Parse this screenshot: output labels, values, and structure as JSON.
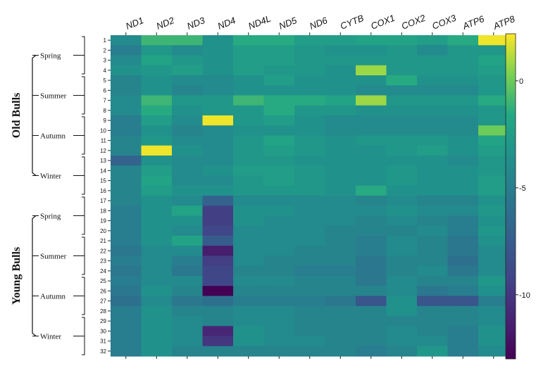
{
  "chart_data": {
    "type": "heatmap",
    "title": "",
    "columns": [
      "ND1",
      "ND2",
      "ND3",
      "ND4",
      "ND4L",
      "ND5",
      "ND6",
      "CYTB",
      "COX1",
      "COX2",
      "COX3",
      "ATP6",
      "ATP8"
    ],
    "rows": [
      "1",
      "2",
      "3",
      "4",
      "5",
      "6",
      "7",
      "8",
      "9",
      "10",
      "11",
      "12",
      "13",
      "14",
      "15",
      "16",
      "17",
      "18",
      "19",
      "20",
      "21",
      "22",
      "23",
      "24",
      "25",
      "26",
      "27",
      "28",
      "29",
      "30",
      "31",
      "32"
    ],
    "row_groups": [
      {
        "label": "Old Bulls",
        "seasons": [
          {
            "label": "Spring",
            "rows": [
              "1",
              "4"
            ]
          },
          {
            "label": "Summer",
            "rows": [
              "5",
              "8"
            ]
          },
          {
            "label": "Autumn",
            "rows": [
              "9",
              "12"
            ]
          },
          {
            "label": "Winter",
            "rows": [
              "13",
              "16"
            ]
          }
        ]
      },
      {
        "label": "Young Bulls",
        "seasons": [
          {
            "label": "Spring",
            "rows": [
              "17",
              "20"
            ]
          },
          {
            "label": "Summer",
            "rows": [
              "21",
              "24"
            ]
          },
          {
            "label": "Autumn",
            "rows": [
              "25",
              "28"
            ]
          },
          {
            "label": "Winter",
            "rows": [
              "29",
              "32"
            ]
          }
        ]
      }
    ],
    "colorscale": "viridis",
    "vmin": -13,
    "vmax": 2.2,
    "colorbar_ticks": [
      0,
      -5,
      -10
    ],
    "values": [
      [
        -4.0,
        -1.0,
        -1.0,
        -3.5,
        -1.5,
        -1.5,
        -2.5,
        -2.5,
        -2.0,
        -2.0,
        -2.5,
        -1.5,
        2.0
      ],
      [
        -5.0,
        -3.0,
        -4.0,
        -3.5,
        -2.5,
        -2.5,
        -3.0,
        -3.5,
        -3.5,
        -3.0,
        -4.0,
        -3.0,
        -3.0
      ],
      [
        -4.0,
        -2.0,
        -3.0,
        -3.5,
        -2.5,
        -2.5,
        -3.0,
        -3.0,
        -3.0,
        -3.0,
        -3.0,
        -3.0,
        -2.0
      ],
      [
        -3.5,
        -3.0,
        -2.5,
        -3.5,
        -2.5,
        -3.0,
        -3.0,
        -3.5,
        0.8,
        -3.0,
        -3.0,
        -3.0,
        -2.5
      ],
      [
        -4.5,
        -3.5,
        -4.0,
        -4.0,
        -3.5,
        -2.5,
        -3.5,
        -3.5,
        -3.5,
        -1.5,
        -3.5,
        -3.5,
        -3.0
      ],
      [
        -4.5,
        -3.5,
        -4.5,
        -4.0,
        -3.5,
        -3.5,
        -3.5,
        -3.5,
        -4.0,
        -4.0,
        -4.0,
        -4.0,
        -3.0
      ],
      [
        -4.0,
        -1.0,
        -3.0,
        -3.0,
        -1.0,
        -1.5,
        -1.5,
        -2.0,
        0.8,
        -3.0,
        -3.0,
        -3.0,
        -1.5
      ],
      [
        -4.0,
        -1.5,
        -3.5,
        -3.0,
        -3.0,
        -1.5,
        -3.0,
        -3.0,
        -3.5,
        -3.5,
        -3.5,
        -3.5,
        -3.0
      ],
      [
        -5.0,
        -2.5,
        -4.0,
        2.0,
        -3.0,
        -2.5,
        -3.5,
        -4.0,
        -4.0,
        -4.0,
        -4.0,
        -4.0,
        -3.0
      ],
      [
        -5.0,
        -3.5,
        -4.5,
        -4.0,
        -3.5,
        -3.5,
        -3.5,
        -4.0,
        -4.0,
        -4.0,
        -4.0,
        -4.0,
        0.0
      ],
      [
        -4.5,
        -3.0,
        -4.0,
        -4.0,
        -3.0,
        -2.0,
        -3.0,
        -3.5,
        -3.0,
        -3.0,
        -3.0,
        -3.5,
        -2.0
      ],
      [
        -4.5,
        2.0,
        -3.5,
        -4.0,
        -3.0,
        -2.5,
        -3.0,
        -3.5,
        -3.5,
        -3.0,
        -2.5,
        -3.5,
        -2.5
      ],
      [
        -7.0,
        -3.5,
        -4.0,
        -4.0,
        -3.0,
        -3.0,
        -3.5,
        -3.5,
        -3.5,
        -3.5,
        -3.5,
        -4.0,
        -3.0
      ],
      [
        -4.5,
        -2.5,
        -4.0,
        -3.5,
        -2.5,
        -2.5,
        -3.0,
        -3.5,
        -3.5,
        -3.0,
        -3.5,
        -3.5,
        -3.0
      ],
      [
        -4.5,
        -2.0,
        -4.0,
        -4.0,
        -3.0,
        -2.5,
        -3.0,
        -3.5,
        -3.5,
        -3.0,
        -3.5,
        -3.5,
        -2.5
      ],
      [
        -4.5,
        -2.5,
        -3.5,
        -3.5,
        -3.0,
        -3.0,
        -3.0,
        -3.5,
        -1.5,
        -3.5,
        -3.5,
        -3.5,
        -2.5
      ],
      [
        -4.5,
        -3.5,
        -4.0,
        -7.0,
        -4.0,
        -4.0,
        -4.0,
        -4.0,
        -4.5,
        -4.0,
        -4.5,
        -4.5,
        -3.5
      ],
      [
        -5.0,
        -3.5,
        -2.0,
        -9.5,
        -3.5,
        -3.5,
        -4.0,
        -4.0,
        -4.0,
        -3.5,
        -4.0,
        -4.0,
        -3.0
      ],
      [
        -5.0,
        -3.5,
        -3.5,
        -9.5,
        -3.5,
        -4.0,
        -4.0,
        -4.0,
        -4.5,
        -4.0,
        -4.5,
        -5.0,
        -3.5
      ],
      [
        -5.0,
        -3.5,
        -4.0,
        -9.0,
        -4.0,
        -4.0,
        -4.0,
        -4.5,
        -4.5,
        -4.5,
        -4.0,
        -5.0,
        -3.0
      ],
      [
        -5.0,
        -3.5,
        -2.0,
        -7.5,
        -4.0,
        -4.0,
        -4.0,
        -4.5,
        -5.0,
        -4.0,
        -4.5,
        -5.5,
        -3.5
      ],
      [
        -5.5,
        -4.0,
        -4.0,
        -11.5,
        -4.0,
        -4.0,
        -4.5,
        -4.5,
        -5.0,
        -4.0,
        -4.5,
        -5.5,
        -4.0
      ],
      [
        -5.0,
        -4.0,
        -5.0,
        -9.5,
        -4.0,
        -4.5,
        -4.5,
        -4.5,
        -5.5,
        -4.5,
        -4.5,
        -6.0,
        -4.0
      ],
      [
        -5.5,
        -4.0,
        -5.5,
        -9.0,
        -4.5,
        -4.5,
        -5.0,
        -5.0,
        -5.5,
        -4.5,
        -4.0,
        -5.5,
        -4.0
      ],
      [
        -5.0,
        -4.0,
        -4.0,
        -9.0,
        -4.0,
        -4.0,
        -4.5,
        -4.5,
        -5.5,
        -4.0,
        -4.5,
        -4.5,
        -3.0
      ],
      [
        -5.5,
        -3.5,
        -4.5,
        -13.0,
        -4.5,
        -4.5,
        -4.5,
        -4.5,
        -4.5,
        -4.0,
        -5.5,
        -5.0,
        -3.5
      ],
      [
        -6.0,
        -4.0,
        -5.5,
        -6.0,
        -5.0,
        -5.0,
        -5.0,
        -5.5,
        -8.0,
        -3.5,
        -8.0,
        -8.0,
        -5.0
      ],
      [
        -5.0,
        -3.5,
        -4.5,
        -4.5,
        -4.0,
        -4.0,
        -4.5,
        -4.5,
        -4.5,
        -3.5,
        -4.5,
        -4.5,
        -4.0
      ],
      [
        -5.0,
        -3.5,
        -4.0,
        -4.5,
        -4.0,
        -4.0,
        -4.5,
        -4.5,
        -4.5,
        -4.5,
        -4.5,
        -4.5,
        -4.0
      ],
      [
        -5.0,
        -3.5,
        -4.0,
        -11.0,
        -3.5,
        -4.0,
        -4.5,
        -4.5,
        -4.5,
        -4.0,
        -4.5,
        -5.0,
        -3.5
      ],
      [
        -5.0,
        -3.5,
        -4.0,
        -10.0,
        -3.5,
        -4.0,
        -4.0,
        -4.5,
        -4.5,
        -4.0,
        -4.0,
        -5.0,
        -3.5
      ],
      [
        -5.0,
        -3.5,
        -4.5,
        -4.5,
        -4.5,
        -4.5,
        -4.5,
        -4.5,
        -5.0,
        -4.5,
        -3.0,
        -5.0,
        -4.0
      ]
    ]
  }
}
